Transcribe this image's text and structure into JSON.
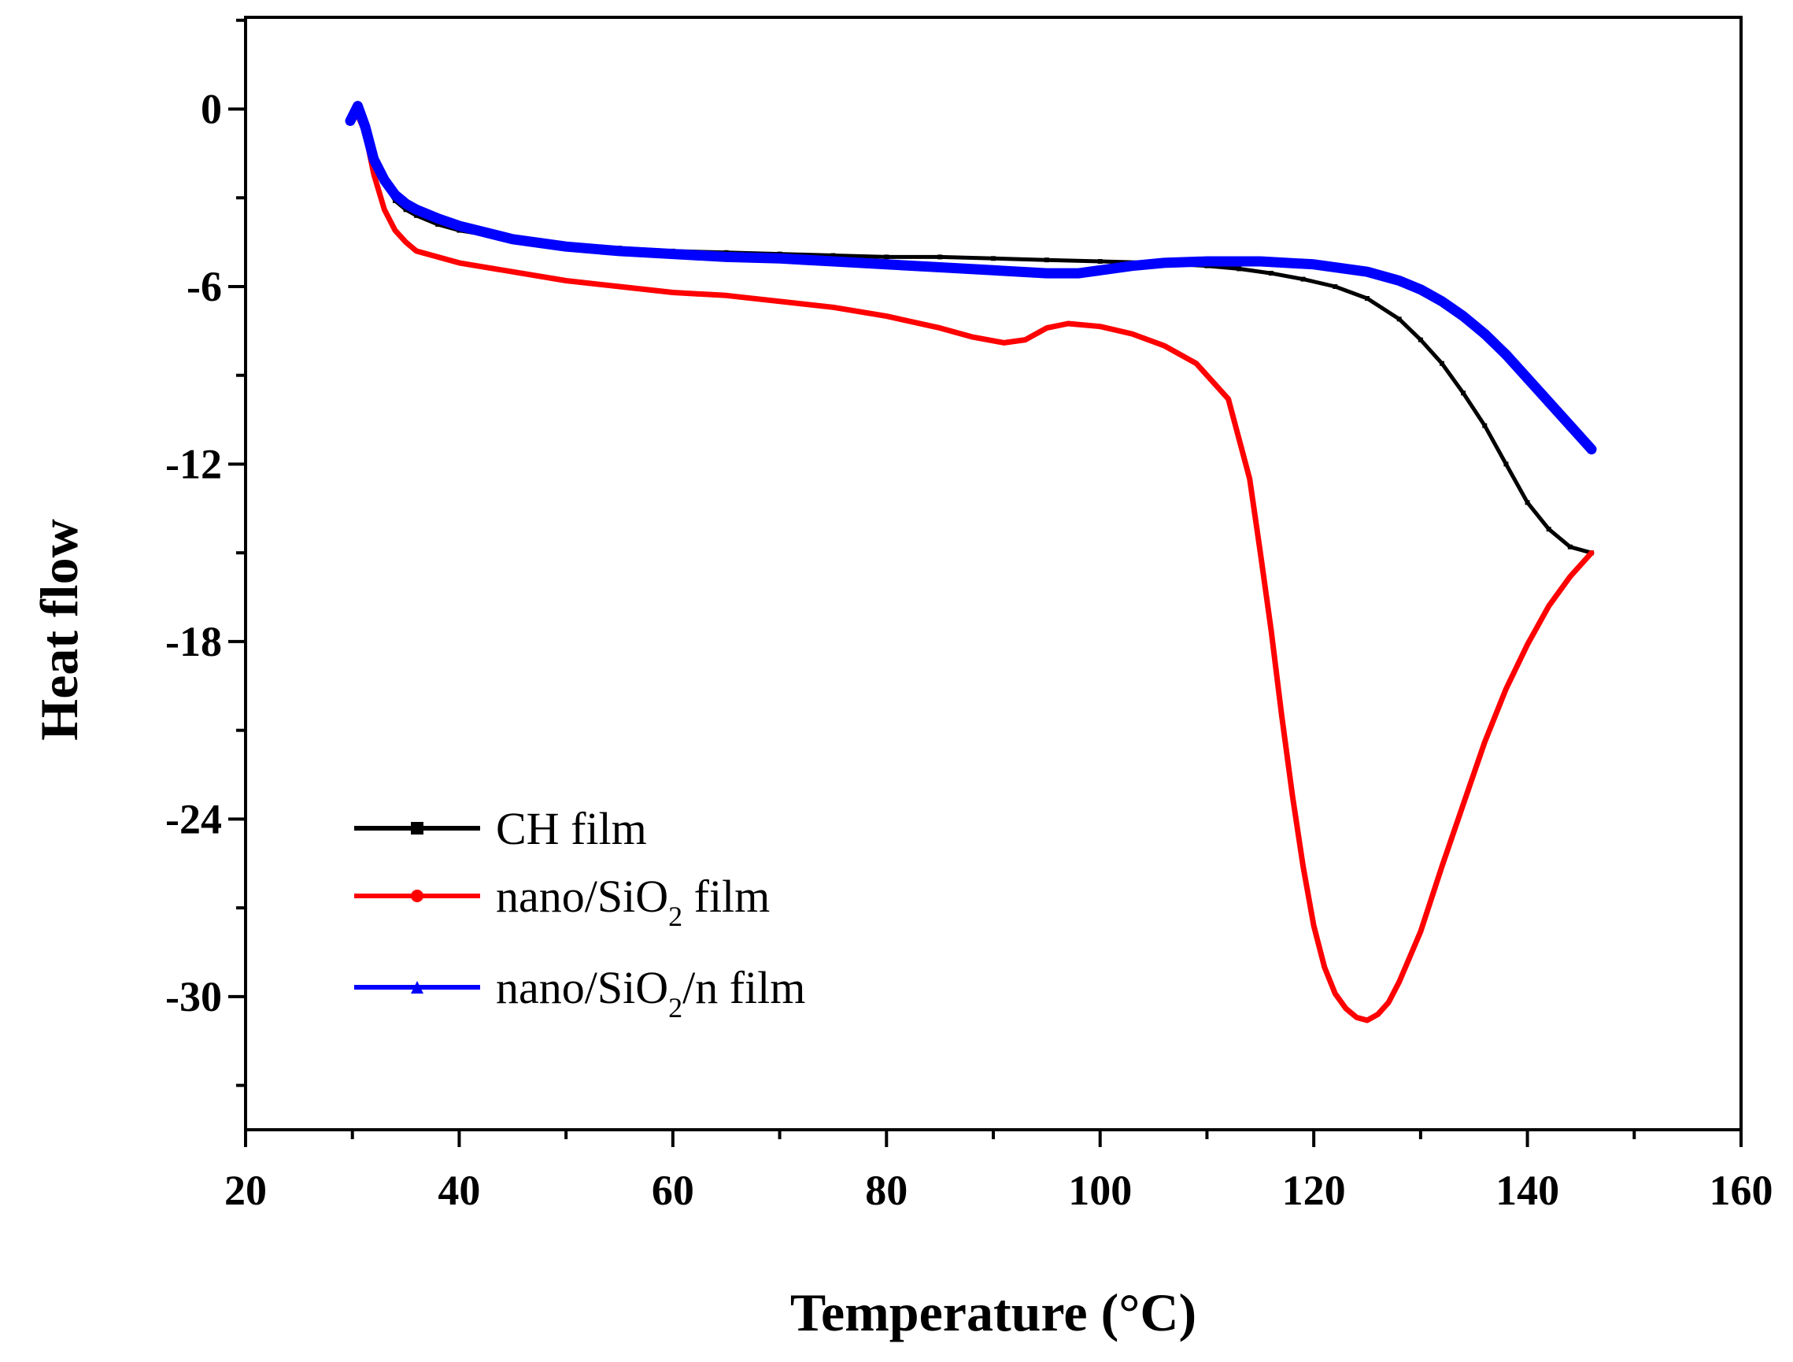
{
  "chart_data": {
    "type": "line",
    "title": "",
    "xlabel": "Temperature (°C)",
    "ylabel": "Heat flow",
    "xlim": [
      20,
      160
    ],
    "ylim": [
      -34.5,
      3.1
    ],
    "x_ticks": [
      20,
      40,
      60,
      80,
      100,
      120,
      140,
      160
    ],
    "y_ticks": [
      0,
      -6,
      -12,
      -18,
      -24,
      -30
    ],
    "x_tick_labels": [
      "20",
      "40",
      "60",
      "80",
      "100",
      "120",
      "140",
      "160"
    ],
    "y_tick_labels": [
      "0",
      "-6",
      "-12",
      "-18",
      "-24",
      "-30"
    ],
    "legend_position": "bottom-left",
    "grid": false,
    "series": [
      {
        "name": "CH film",
        "legend_parts": [
          "CH film"
        ],
        "color": "#000000",
        "marker": "square",
        "x": [
          29.8,
          30.5,
          31.2,
          32,
          33,
          34,
          35,
          36,
          38,
          40,
          45,
          50,
          55,
          60,
          65,
          70,
          75,
          80,
          85,
          90,
          95,
          100,
          105,
          110,
          113,
          116,
          119,
          122,
          125,
          128,
          130,
          132,
          134,
          136,
          138,
          140,
          142,
          144,
          146
        ],
        "y": [
          -0.4,
          0.1,
          -0.5,
          -1.6,
          -2.5,
          -3.1,
          -3.4,
          -3.6,
          -3.9,
          -4.1,
          -4.4,
          -4.6,
          -4.7,
          -4.8,
          -4.85,
          -4.9,
          -4.95,
          -5.0,
          -5.0,
          -5.05,
          -5.1,
          -5.15,
          -5.2,
          -5.3,
          -5.4,
          -5.55,
          -5.75,
          -6.0,
          -6.4,
          -7.1,
          -7.8,
          -8.6,
          -9.6,
          -10.7,
          -12.0,
          -13.3,
          -14.2,
          -14.8,
          -15.0
        ]
      },
      {
        "name": "nano/SiO2 film",
        "legend_parts": [
          "nano/SiO",
          "2",
          " film"
        ],
        "color": "#ff0000",
        "marker": "circle",
        "x": [
          29.8,
          30.5,
          31.2,
          32,
          33,
          34,
          35,
          36,
          38,
          40,
          45,
          50,
          55,
          60,
          65,
          70,
          75,
          80,
          85,
          88,
          91,
          93,
          95,
          97,
          100,
          103,
          106,
          109,
          112,
          114,
          115,
          116,
          117,
          118,
          119,
          120,
          121,
          122,
          123,
          124,
          125,
          126,
          127,
          128,
          130,
          132,
          134,
          136,
          138,
          140,
          142,
          144,
          146
        ],
        "y": [
          -0.4,
          -0.2,
          -0.8,
          -2.2,
          -3.4,
          -4.1,
          -4.5,
          -4.8,
          -5.0,
          -5.2,
          -5.5,
          -5.8,
          -6.0,
          -6.2,
          -6.3,
          -6.5,
          -6.7,
          -7.0,
          -7.4,
          -7.7,
          -7.9,
          -7.8,
          -7.4,
          -7.25,
          -7.35,
          -7.6,
          -8.0,
          -8.6,
          -9.8,
          -12.5,
          -15.0,
          -17.6,
          -20.5,
          -23.2,
          -25.6,
          -27.6,
          -29.0,
          -29.9,
          -30.4,
          -30.7,
          -30.8,
          -30.6,
          -30.2,
          -29.5,
          -27.8,
          -25.6,
          -23.5,
          -21.4,
          -19.6,
          -18.1,
          -16.8,
          -15.8,
          -15.0
        ]
      },
      {
        "name": "nano/SiO2/n film",
        "legend_parts": [
          "nano/SiO",
          "2",
          "/n film"
        ],
        "color": "#0000ff",
        "marker": "triangle",
        "x": [
          29.8,
          30.5,
          31.2,
          32,
          33,
          34,
          35,
          36,
          38,
          40,
          45,
          50,
          55,
          60,
          65,
          70,
          75,
          80,
          85,
          90,
          95,
          98,
          100,
          103,
          106,
          110,
          115,
          120,
          125,
          128,
          130,
          132,
          134,
          136,
          138,
          140,
          142,
          144,
          146
        ],
        "y": [
          -0.4,
          0.1,
          -0.6,
          -1.7,
          -2.4,
          -2.9,
          -3.2,
          -3.4,
          -3.7,
          -3.95,
          -4.4,
          -4.65,
          -4.8,
          -4.9,
          -5.0,
          -5.05,
          -5.15,
          -5.25,
          -5.35,
          -5.45,
          -5.55,
          -5.55,
          -5.45,
          -5.3,
          -5.2,
          -5.15,
          -5.15,
          -5.25,
          -5.5,
          -5.8,
          -6.1,
          -6.5,
          -7.0,
          -7.6,
          -8.3,
          -9.1,
          -9.9,
          -10.7,
          -11.5
        ]
      }
    ]
  }
}
